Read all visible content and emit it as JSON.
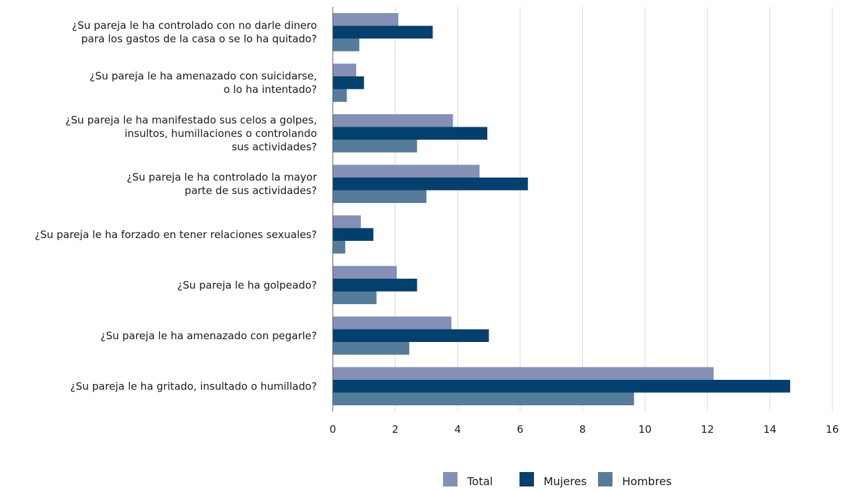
{
  "chart_data": {
    "type": "bar",
    "orientation": "horizontal",
    "categories": [
      [
        "¿Su pareja le ha controlado con no darle dinero",
        "para los gastos de la casa o se lo ha quitado?"
      ],
      [
        "¿Su pareja le ha amenazado con suicidarse,",
        "o lo ha intentado?"
      ],
      [
        "¿Su pareja le ha manifestado sus celos a golpes,",
        "insultos, humillaciones o controlando",
        "sus actividades?"
      ],
      [
        "¿Su pareja le ha controlado la mayor",
        "parte de sus actividades?"
      ],
      [
        "¿Su pareja le ha forzado en tener relaciones sexuales?"
      ],
      [
        "¿Su pareja le ha golpeado?"
      ],
      [
        "¿Su pareja le ha amenazado con pegarle?"
      ],
      [
        "¿Su pareja le ha gritado, insultado o humillado?"
      ]
    ],
    "series": [
      {
        "name": "Total",
        "color": "#8490b5",
        "values": [
          2.1,
          0.75,
          3.85,
          4.7,
          0.9,
          2.05,
          3.8,
          12.2
        ]
      },
      {
        "name": "Mujeres",
        "color": "#03406e",
        "values": [
          3.2,
          1.0,
          4.95,
          6.25,
          1.3,
          2.7,
          5.0,
          14.65
        ]
      },
      {
        "name": "Hombres",
        "color": "#567c9b",
        "values": [
          0.85,
          0.45,
          2.7,
          3.0,
          0.4,
          1.4,
          2.45,
          9.65
        ]
      }
    ],
    "xlim": [
      0,
      16
    ],
    "xticks": [
      0,
      2,
      4,
      6,
      8,
      10,
      12,
      14,
      16
    ],
    "grid": "vertical",
    "legend": "bottom-center"
  }
}
